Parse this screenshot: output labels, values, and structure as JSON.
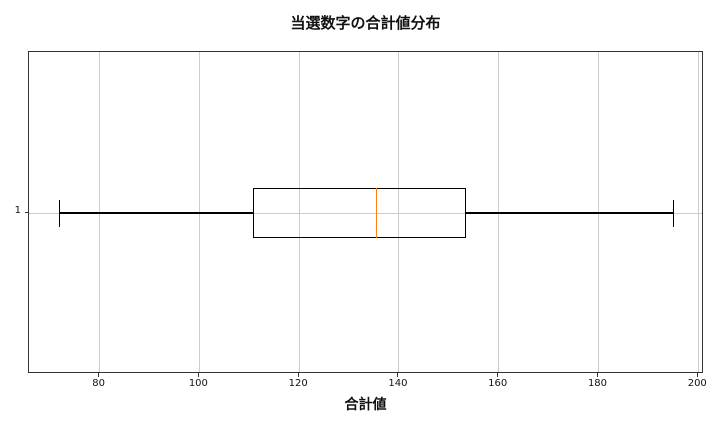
{
  "title": "当選数字の合計値分布",
  "chart_data": {
    "type": "boxplot",
    "orientation": "horizontal",
    "title": "当選数字の合計値分布",
    "xlabel": "合計値",
    "ylabel": "",
    "series": [
      {
        "name": "合計値",
        "category": "1",
        "whisker_low": 72,
        "q1": 110.75,
        "median": 135.5,
        "q3": 153.5,
        "whisker_high": 195,
        "outliers": []
      }
    ],
    "x_tick_labels": [
      "80",
      "100",
      "120",
      "140",
      "160",
      "180",
      "200"
    ],
    "x_tick_values": [
      80,
      100,
      120,
      140,
      160,
      180,
      200
    ],
    "xlim": [
      65.85,
      201.15
    ],
    "y_tick_labels": [
      "1"
    ],
    "grid": true,
    "legend": false,
    "colors": {
      "box_edge": "#000000",
      "median": "#ff7f0e",
      "whisker": "#000000",
      "grid": "#cccccc",
      "spine": "#333333",
      "background": "#ffffff",
      "text": "#111111"
    }
  }
}
